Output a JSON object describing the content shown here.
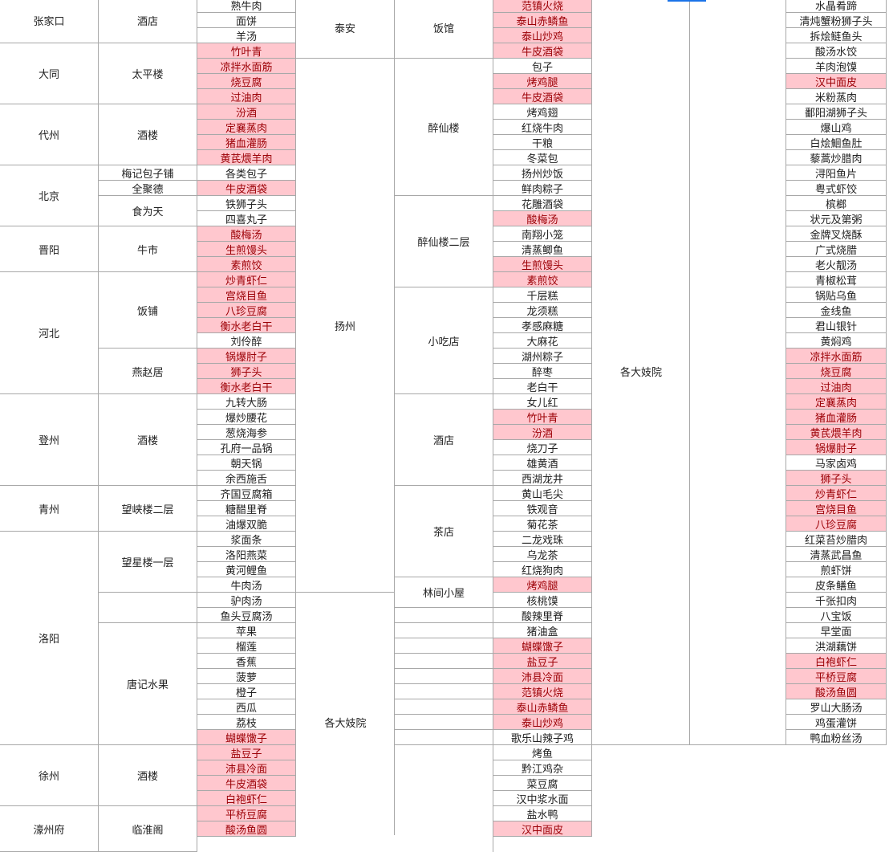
{
  "colors": {
    "highlight_fill": "#ffc7ce",
    "highlight_text": "#9c0006",
    "grid": "#a8a8a8",
    "selection": "#1a73e8"
  },
  "col_a": [
    "张家口",
    "大同",
    "代州",
    "北京",
    "晋阳",
    "河北",
    "登州",
    "青州",
    "洛阳",
    "徐州",
    "濠州府"
  ],
  "col_b": [
    "酒店",
    "太平楼",
    "酒楼",
    "梅记包子铺",
    "全聚德",
    "食为天",
    "牛市",
    "饭铺",
    "燕赵居",
    "酒楼",
    "望峡楼二层",
    "望星楼一层",
    "唐记水果",
    "酒楼",
    "临淮阁"
  ],
  "col_c": [
    {
      "t": "熟牛肉"
    },
    {
      "t": "面饼"
    },
    {
      "t": "羊汤"
    },
    {
      "t": "竹叶青",
      "h": 1
    },
    {
      "t": "凉拌水面筋",
      "h": 1
    },
    {
      "t": "烧豆腐",
      "h": 1
    },
    {
      "t": "过油肉",
      "h": 1
    },
    {
      "t": "汾酒",
      "h": 1
    },
    {
      "t": "定襄蒸肉",
      "h": 1
    },
    {
      "t": "猪血灌肠",
      "h": 1
    },
    {
      "t": "黄芪煨羊肉",
      "h": 1
    },
    {
      "t": "各类包子"
    },
    {
      "t": "牛皮酒袋",
      "h": 1
    },
    {
      "t": "铁狮子头"
    },
    {
      "t": "四喜丸子"
    },
    {
      "t": "酸梅汤",
      "h": 1
    },
    {
      "t": "生煎馒头",
      "h": 1
    },
    {
      "t": "素煎饺",
      "h": 1
    },
    {
      "t": "炒青虾仁",
      "h": 1
    },
    {
      "t": "宫烧目鱼",
      "h": 1
    },
    {
      "t": "八珍豆腐",
      "h": 1
    },
    {
      "t": "衡水老白干",
      "h": 1
    },
    {
      "t": "刘伶醉"
    },
    {
      "t": "锅爆肘子",
      "h": 1
    },
    {
      "t": "狮子头",
      "h": 1
    },
    {
      "t": "衡水老白干",
      "h": 1
    },
    {
      "t": "九转大肠"
    },
    {
      "t": "爆炒腰花"
    },
    {
      "t": "葱烧海参"
    },
    {
      "t": "孔府一品锅"
    },
    {
      "t": "朝天锅"
    },
    {
      "t": "余西施舌"
    },
    {
      "t": "齐国豆腐箱"
    },
    {
      "t": "糖醋里脊"
    },
    {
      "t": "油爆双脆"
    },
    {
      "t": "浆面条"
    },
    {
      "t": "洛阳燕菜"
    },
    {
      "t": "黄河鲤鱼"
    },
    {
      "t": "牛肉汤"
    },
    {
      "t": "驴肉汤"
    },
    {
      "t": "鱼头豆腐汤"
    },
    {
      "t": "苹果"
    },
    {
      "t": "榴莲"
    },
    {
      "t": "香蕉"
    },
    {
      "t": "菠萝"
    },
    {
      "t": "橙子"
    },
    {
      "t": "西瓜"
    },
    {
      "t": "荔枝"
    },
    {
      "t": "蝴蝶馓子",
      "h": 1
    },
    {
      "t": "盐豆子",
      "h": 1
    },
    {
      "t": "沛县冷面",
      "h": 1
    },
    {
      "t": "牛皮酒袋",
      "h": 1
    },
    {
      "t": "白袍虾仁",
      "h": 1
    },
    {
      "t": "平桥豆腐",
      "h": 1
    },
    {
      "t": "酸汤鱼圆",
      "h": 1
    }
  ],
  "col_d": [
    "泰安",
    "扬州",
    "各大妓院"
  ],
  "col_e": [
    "饭馆",
    "醉仙楼",
    "醉仙楼二层",
    "小吃店",
    "酒店",
    "茶店",
    "林间小屋"
  ],
  "col_f": [
    {
      "t": "范镇火烧",
      "h": 1
    },
    {
      "t": "泰山赤鳞鱼",
      "h": 1
    },
    {
      "t": "泰山炒鸡",
      "h": 1
    },
    {
      "t": "牛皮酒袋",
      "h": 1
    },
    {
      "t": "包子"
    },
    {
      "t": "烤鸡腿",
      "h": 1
    },
    {
      "t": "牛皮酒袋",
      "h": 1
    },
    {
      "t": "烤鸡翅"
    },
    {
      "t": "红烧牛肉"
    },
    {
      "t": "干粮"
    },
    {
      "t": "冬菜包"
    },
    {
      "t": "扬州炒饭"
    },
    {
      "t": "鲜肉粽子"
    },
    {
      "t": "花雕酒袋"
    },
    {
      "t": "酸梅汤",
      "h": 1
    },
    {
      "t": "南翔小笼"
    },
    {
      "t": "清蒸鲫鱼"
    },
    {
      "t": "生煎馒头",
      "h": 1
    },
    {
      "t": "素煎饺",
      "h": 1
    },
    {
      "t": "千层糕"
    },
    {
      "t": "龙须糕"
    },
    {
      "t": "孝感麻糖"
    },
    {
      "t": "大麻花"
    },
    {
      "t": "湖州粽子"
    },
    {
      "t": "醉枣"
    },
    {
      "t": "老白干"
    },
    {
      "t": "女儿红"
    },
    {
      "t": "竹叶青",
      "h": 1
    },
    {
      "t": "汾酒",
      "h": 1
    },
    {
      "t": "烧刀子"
    },
    {
      "t": "雄黄酒"
    },
    {
      "t": "西湖龙井"
    },
    {
      "t": "黄山毛尖"
    },
    {
      "t": "铁观音"
    },
    {
      "t": "菊花茶"
    },
    {
      "t": "二龙戏珠"
    },
    {
      "t": "乌龙茶"
    },
    {
      "t": "红烧狗肉"
    },
    {
      "t": "烤鸡腿",
      "h": 1
    },
    {
      "t": "核桃馍"
    },
    {
      "t": "酸辣里脊"
    },
    {
      "t": "猪油盒"
    },
    {
      "t": "蝴蝶馓子",
      "h": 1
    },
    {
      "t": "盐豆子",
      "h": 1
    },
    {
      "t": "沛县冷面",
      "h": 1
    },
    {
      "t": "范镇火烧",
      "h": 1
    },
    {
      "t": "泰山赤鳞鱼",
      "h": 1
    },
    {
      "t": "泰山炒鸡",
      "h": 1
    },
    {
      "t": "歌乐山辣子鸡"
    },
    {
      "t": "烤鱼"
    },
    {
      "t": "黔江鸡杂"
    },
    {
      "t": "菜豆腐"
    },
    {
      "t": "汉中浆水面"
    },
    {
      "t": "盐水鸭"
    },
    {
      "t": "汉中面皮",
      "h": 1
    }
  ],
  "col_g": [
    "各大妓院"
  ],
  "col_i": [
    {
      "t": "水晶肴蹄"
    },
    {
      "t": "清炖蟹粉狮子头"
    },
    {
      "t": "拆烩鲢鱼头"
    },
    {
      "t": "酸汤水饺"
    },
    {
      "t": "羊肉泡馍"
    },
    {
      "t": "汉中面皮",
      "h": 1
    },
    {
      "t": "米粉蒸肉"
    },
    {
      "t": "鄱阳湖狮子头"
    },
    {
      "t": "爆山鸡"
    },
    {
      "t": "白烩鮰鱼肚"
    },
    {
      "t": "藜蒿炒腊肉"
    },
    {
      "t": "浔阳鱼片"
    },
    {
      "t": "粤式虾饺"
    },
    {
      "t": "槟榔"
    },
    {
      "t": "状元及第粥"
    },
    {
      "t": "金牌叉烧酥"
    },
    {
      "t": "广式烧腊"
    },
    {
      "t": "老火靓汤"
    },
    {
      "t": "青椒松茸"
    },
    {
      "t": "锅贴乌鱼"
    },
    {
      "t": "金线鱼"
    },
    {
      "t": "君山银针"
    },
    {
      "t": "黄焖鸡"
    },
    {
      "t": "凉拌水面筋",
      "h": 1
    },
    {
      "t": "烧豆腐",
      "h": 1
    },
    {
      "t": "过油肉",
      "h": 1
    },
    {
      "t": "定襄蒸肉",
      "h": 1
    },
    {
      "t": "猪血灌肠",
      "h": 1
    },
    {
      "t": "黄芪煨羊肉",
      "h": 1
    },
    {
      "t": "锅爆肘子",
      "h": 1
    },
    {
      "t": "马家卤鸡"
    },
    {
      "t": "狮子头",
      "h": 1
    },
    {
      "t": "炒青虾仁",
      "h": 1
    },
    {
      "t": "宫烧目鱼",
      "h": 1
    },
    {
      "t": "八珍豆腐",
      "h": 1
    },
    {
      "t": "红菜苔炒腊肉"
    },
    {
      "t": "清蒸武昌鱼"
    },
    {
      "t": "煎虾饼"
    },
    {
      "t": "皮条鳝鱼"
    },
    {
      "t": "千张扣肉"
    },
    {
      "t": "八宝饭"
    },
    {
      "t": "早堂面"
    },
    {
      "t": "洪湖藕饼"
    },
    {
      "t": "白袍虾仁",
      "h": 1
    },
    {
      "t": "平桥豆腐",
      "h": 1
    },
    {
      "t": "酸汤鱼圆",
      "h": 1
    },
    {
      "t": "罗山大肠汤"
    },
    {
      "t": "鸡蛋灌饼"
    },
    {
      "t": "鸭血粉丝汤"
    }
  ]
}
